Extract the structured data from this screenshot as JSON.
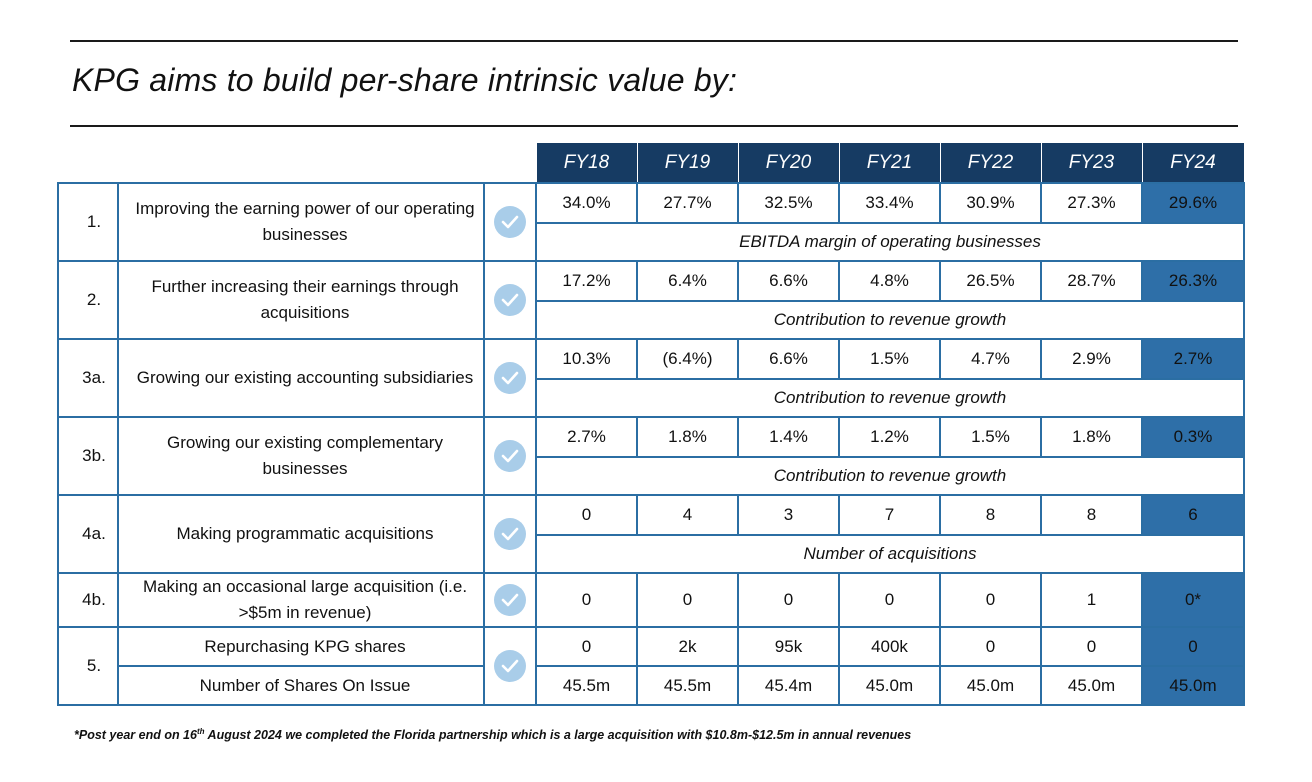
{
  "title": "KPG aims to build per-share intrinsic value by:",
  "years": [
    "FY18",
    "FY19",
    "FY20",
    "FY21",
    "FY22",
    "FY23",
    "FY24"
  ],
  "rows": [
    {
      "num": "1.",
      "desc": "Improving the earning power of our operating businesses",
      "values": [
        "34.0%",
        "27.7%",
        "32.5%",
        "33.4%",
        "30.9%",
        "27.3%",
        "29.6%"
      ],
      "caption": "EBITDA margin of operating businesses"
    },
    {
      "num": "2.",
      "desc": "Further increasing their earnings through acquisitions",
      "values": [
        "17.2%",
        "6.4%",
        "6.6%",
        "4.8%",
        "26.5%",
        "28.7%",
        "26.3%"
      ],
      "caption": "Contribution to revenue growth"
    },
    {
      "num": "3a.",
      "desc": "Growing our existing accounting subsidiaries",
      "values": [
        "10.3%",
        "(6.4%)",
        "6.6%",
        "1.5%",
        "4.7%",
        "2.9%",
        "2.7%"
      ],
      "caption": "Contribution to revenue growth"
    },
    {
      "num": "3b.",
      "desc": "Growing our existing complementary businesses",
      "values": [
        "2.7%",
        "1.8%",
        "1.4%",
        "1.2%",
        "1.5%",
        "1.8%",
        "0.3%"
      ],
      "caption": "Contribution to revenue growth"
    },
    {
      "num": "4a.",
      "desc": "Making programmatic acquisitions",
      "values": [
        "0",
        "4",
        "3",
        "7",
        "8",
        "8",
        "6"
      ],
      "caption": "Number of acquisitions"
    },
    {
      "num": "4b.",
      "desc": "Making an occasional large acquisition (i.e. >$5m in revenue)",
      "values": [
        "0",
        "0",
        "0",
        "0",
        "0",
        "1",
        "0*"
      ]
    },
    {
      "num": "5.",
      "desc": "Repurchasing KPG shares",
      "values": [
        "0",
        "2k",
        "95k",
        "400k",
        "0",
        "0",
        "0"
      ],
      "desc2": "Number of Shares On Issue",
      "values2": [
        "45.5m",
        "45.5m",
        "45.4m",
        "45.0m",
        "45.0m",
        "45.0m",
        "45.0m"
      ]
    }
  ],
  "footnote": {
    "pre": "*Post year end on 16",
    "sup": "th",
    "post": " August 2024 we completed the Florida partnership which is a large acquisition with $10.8m-$12.5m in annual revenues"
  },
  "colors": {
    "header": "#163b63",
    "highlight": "#2e6fa8",
    "border": "#2b6ea3",
    "check": "#a9cde9"
  }
}
